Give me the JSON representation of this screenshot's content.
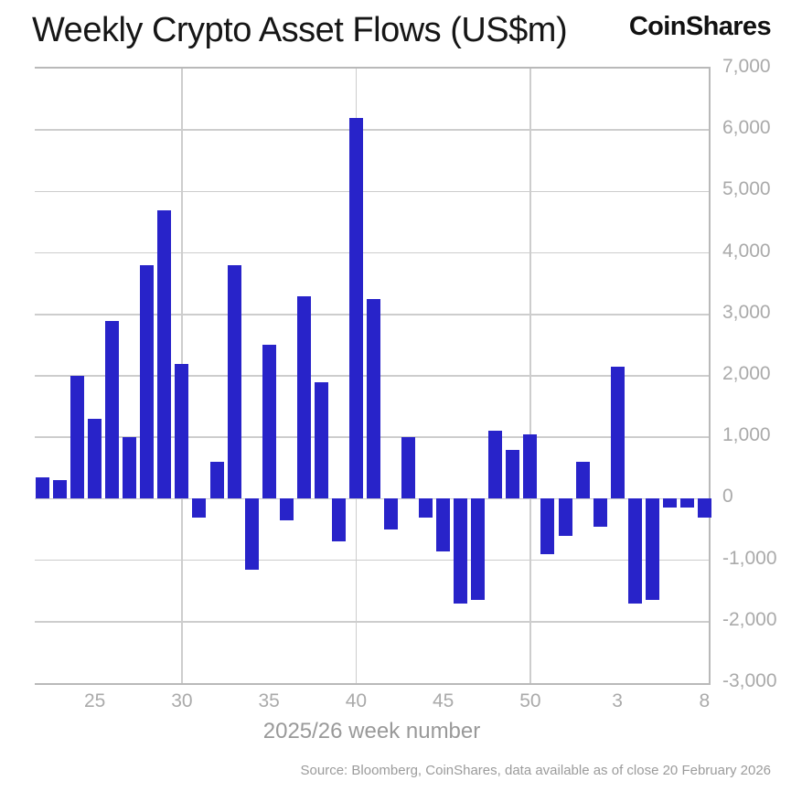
{
  "header": {
    "title": "Weekly Crypto Asset Flows (US$m)",
    "logo": "CoinShares"
  },
  "chart_data": {
    "type": "bar",
    "title": "Weekly Crypto Asset Flows (US$m)",
    "xlabel": "2025/26 week number",
    "ylabel": "",
    "ylim": [
      -3000,
      7000
    ],
    "ytick_step": 1000,
    "y_tick_values": [
      7000,
      6000,
      5000,
      4000,
      3000,
      2000,
      1000,
      0,
      -1000,
      -2000,
      -3000
    ],
    "grid": true,
    "legend_position": "none",
    "bar_color": "#2823c9",
    "grid_color": "#cdcdcd",
    "axis_text_color": "#aaaaaa",
    "categories": [
      22,
      23,
      24,
      25,
      26,
      27,
      28,
      29,
      30,
      31,
      32,
      33,
      34,
      35,
      36,
      37,
      38,
      39,
      40,
      41,
      42,
      43,
      44,
      45,
      46,
      47,
      48,
      49,
      50,
      51,
      52,
      1,
      2,
      3,
      4,
      5,
      6,
      7,
      8
    ],
    "values": [
      350,
      300,
      2000,
      1300,
      2900,
      1000,
      3800,
      4700,
      2200,
      -300,
      600,
      3800,
      -1150,
      2500,
      -350,
      3300,
      1900,
      -700,
      6200,
      3250,
      -500,
      1000,
      -300,
      -850,
      -1700,
      -1650,
      1100,
      800,
      1050,
      -900,
      -600,
      600,
      -450,
      2150,
      -1700,
      -1650,
      -150,
      -150,
      -300
    ],
    "x_tick_weeks": [
      25,
      30,
      35,
      40,
      45,
      50,
      3,
      8
    ],
    "x_gridline_weeks": [
      30,
      40,
      50
    ]
  },
  "footer": {
    "source": "Source: Bloomberg, CoinShares, data available as of close 20 February 2026"
  }
}
